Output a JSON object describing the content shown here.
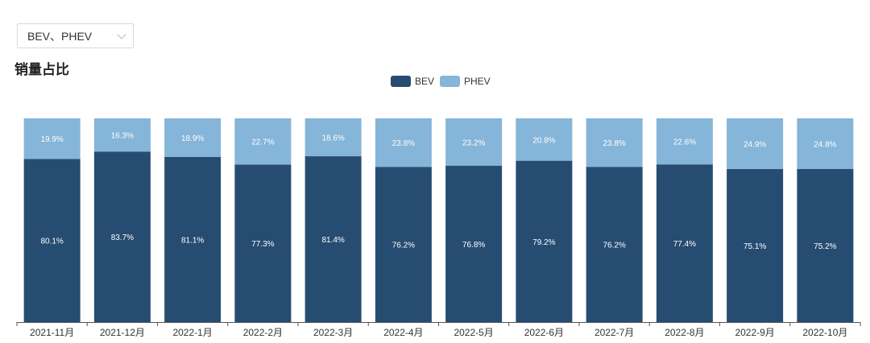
{
  "filter": {
    "selected": "BEV、PHEV"
  },
  "title": "销量占比",
  "colors": {
    "bev": "#264c72",
    "phev": "#85b5d8",
    "axis": "#555555"
  },
  "chart_data": {
    "type": "bar",
    "stacked": true,
    "normalized": true,
    "title": "销量占比",
    "xlabel": "",
    "ylabel": "",
    "ylim": [
      0,
      100
    ],
    "legend": "top-center",
    "grid": false,
    "categories": [
      "2021-11月",
      "2021-12月",
      "2022-1月",
      "2022-2月",
      "2022-3月",
      "2022-4月",
      "2022-5月",
      "2022-6月",
      "2022-7月",
      "2022-8月",
      "2022-9月",
      "2022-10月"
    ],
    "series": [
      {
        "name": "BEV",
        "color": "#264c72",
        "values": [
          80.1,
          83.7,
          81.1,
          77.3,
          81.4,
          76.2,
          76.8,
          79.2,
          76.2,
          77.4,
          75.1,
          75.2
        ],
        "labels": [
          "80.1%",
          "83.7%",
          "81.1%",
          "77.3%",
          "81.4%",
          "76.2%",
          "76.8%",
          "79.2%",
          "76.2%",
          "77.4%",
          "75.1%",
          "75.2%"
        ]
      },
      {
        "name": "PHEV",
        "color": "#85b5d8",
        "values": [
          19.9,
          16.3,
          18.9,
          22.7,
          18.6,
          23.8,
          23.2,
          20.8,
          23.8,
          22.6,
          24.9,
          24.8
        ],
        "labels": [
          "19.9%",
          "16.3%",
          "18.9%",
          "22.7%",
          "18.6%",
          "23.8%",
          "23.2%",
          "20.8%",
          "23.8%",
          "22.6%",
          "24.9%",
          "24.8%"
        ]
      }
    ]
  }
}
